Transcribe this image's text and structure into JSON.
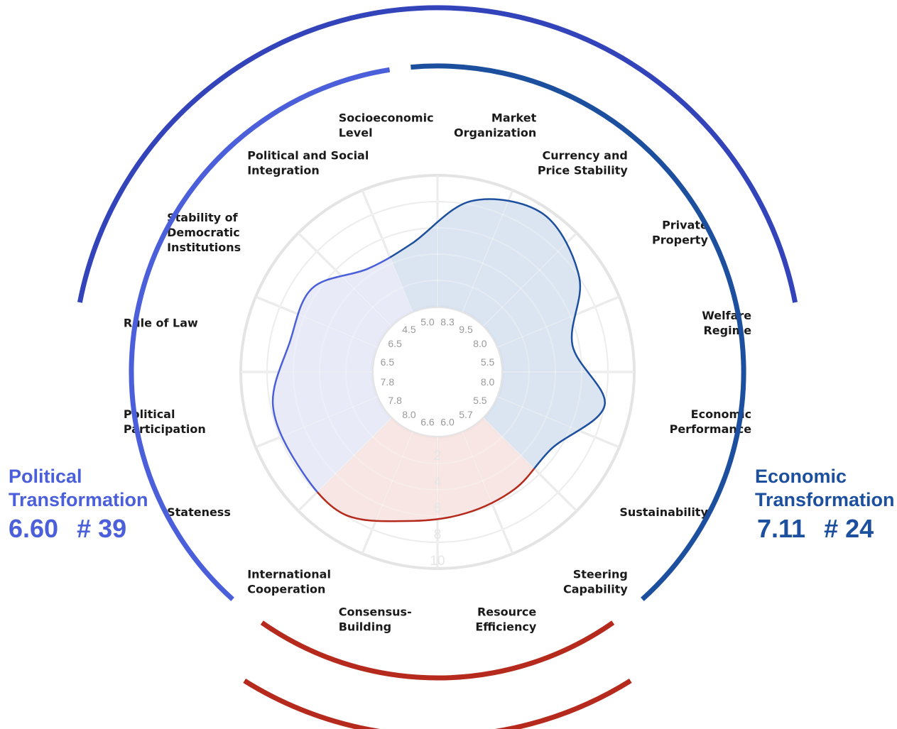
{
  "chart_data": {
    "type": "radar",
    "rlim": [
      0,
      10
    ],
    "ring_labels": [
      "2",
      "4",
      "6",
      "8",
      "10"
    ],
    "categories": [
      {
        "label": [
          "Market",
          "Organization"
        ],
        "value": 8.3,
        "group": "economic"
      },
      {
        "label": [
          "Currency and",
          "Price Stability"
        ],
        "value": 9.5,
        "group": "economic"
      },
      {
        "label": [
          "Private",
          "Property"
        ],
        "value": 8.0,
        "group": "economic"
      },
      {
        "label": [
          "Welfare",
          "Regime"
        ],
        "value": 5.5,
        "group": "economic"
      },
      {
        "label": [
          "Economic",
          "Performance"
        ],
        "value": 8.0,
        "group": "economic"
      },
      {
        "label": [
          "Sustainability"
        ],
        "value": 5.5,
        "group": "economic"
      },
      {
        "label": [
          "Steering",
          "Capability"
        ],
        "value": 5.7,
        "group": "governance"
      },
      {
        "label": [
          "Resource",
          "Efficiency"
        ],
        "value": 6.0,
        "group": "governance"
      },
      {
        "label": [
          "Consensus-",
          "Building"
        ],
        "value": 6.6,
        "group": "governance"
      },
      {
        "label": [
          "International",
          "Cooperation"
        ],
        "value": 8.0,
        "group": "governance"
      },
      {
        "label": [
          "Stateness"
        ],
        "value": 7.8,
        "group": "political"
      },
      {
        "label": [
          "Political",
          "Participation"
        ],
        "value": 7.8,
        "group": "political"
      },
      {
        "label": [
          "Rule of Law"
        ],
        "value": 6.5,
        "group": "political"
      },
      {
        "label": [
          "Stability of",
          "Democratic",
          "Institutions"
        ],
        "value": 6.5,
        "group": "political"
      },
      {
        "label": [
          "Political and Social",
          "Integration"
        ],
        "value": 4.5,
        "group": "political"
      },
      {
        "label": [
          "Socioeconomic",
          "Level"
        ],
        "value": 5.0,
        "group": "economic"
      }
    ],
    "value_labels": [
      "8.3",
      "9.5",
      "8.0",
      "5.5",
      "8.0",
      "5.5",
      "5.7",
      "6.0",
      "6.6",
      "8.0",
      "7.8",
      "7.8",
      "6.5",
      "6.5",
      "4.5",
      "5.0"
    ]
  },
  "political": {
    "title_line1": "Political",
    "title_line2": "Transformation",
    "score": "6.60",
    "rank": "# 39"
  },
  "economic": {
    "title_line1": "Economic",
    "title_line2": "Transformation",
    "score": "7.11",
    "rank": "# 24"
  },
  "colors": {
    "political": "#4a5fd9",
    "political_dark": "#3344bb",
    "economic": "#1c4f9e",
    "governance": "#b52a1c",
    "political_fill": "#e4e6f7",
    "economic_fill": "#d5e0ee",
    "governance_fill": "#f6e2de",
    "grid": "#e4e4e4"
  }
}
